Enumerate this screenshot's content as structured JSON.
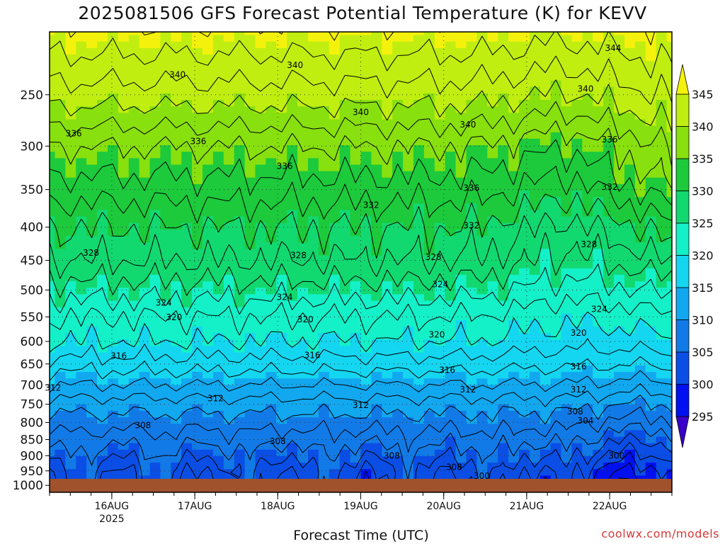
{
  "title": "2025081506 GFS Forecast Potential Temperature (K) for KEVV",
  "xlabel": "Forecast Time (UTC)",
  "credit": "coolwx.com/models",
  "chart_data": {
    "type": "heatmap",
    "title": "2025081506 GFS Forecast Potential Temperature (K) for KEVV",
    "xlabel": "Forecast Time (UTC)",
    "ylabel": "",
    "x_range": [
      "2025-08-15T06:00Z",
      "2025-08-22T18:00Z"
    ],
    "y_axis": {
      "scale": "log-pressure",
      "inverted": true,
      "range": [
        1025,
        200
      ],
      "ticks": [
        250,
        300,
        350,
        400,
        450,
        500,
        550,
        600,
        650,
        700,
        750,
        800,
        850,
        900,
        950,
        1000
      ]
    },
    "x_ticks": [
      {
        "label": "16AUG",
        "sublabel": "2025",
        "time": "2025-08-16T00:00Z"
      },
      {
        "label": "17AUG",
        "sublabel": "",
        "time": "2025-08-17T00:00Z"
      },
      {
        "label": "18AUG",
        "sublabel": "",
        "time": "2025-08-18T00:00Z"
      },
      {
        "label": "19AUG",
        "sublabel": "",
        "time": "2025-08-19T00:00Z"
      },
      {
        "label": "20AUG",
        "sublabel": "",
        "time": "2025-08-20T00:00Z"
      },
      {
        "label": "21AUG",
        "sublabel": "",
        "time": "2025-08-21T00:00Z"
      },
      {
        "label": "22AUG",
        "sublabel": "",
        "time": "2025-08-22T00:00Z"
      }
    ],
    "colorbar": {
      "levels": [
        295,
        300,
        305,
        310,
        315,
        320,
        325,
        330,
        335,
        340,
        345
      ],
      "colors": [
        "#3a00c8",
        "#0010f0",
        "#0a4ee6",
        "#127ae6",
        "#12a8f0",
        "#14d6f0",
        "#14f0c8",
        "#12d870",
        "#1cca3c",
        "#88e00e",
        "#c0ee10",
        "#f4f20c"
      ],
      "extend": "both"
    },
    "profile_pressure": [
      250,
      300,
      350,
      400,
      450,
      500,
      550,
      600,
      650,
      700,
      750,
      800,
      850,
      900,
      950,
      1000
    ],
    "profile_theta_typical": [
      341,
      336,
      333,
      330,
      328,
      325,
      322,
      320,
      317,
      314,
      311,
      309,
      307,
      305,
      303,
      302
    ],
    "contour_interval": 2,
    "contour_labels": [
      {
        "text": "344",
        "time": "2025-08-22T01:00Z",
        "p": 212
      },
      {
        "text": "340",
        "time": "2025-08-16T19:00Z",
        "p": 233
      },
      {
        "text": "340",
        "time": "2025-08-18T05:00Z",
        "p": 225
      },
      {
        "text": "340",
        "time": "2025-08-19T00:00Z",
        "p": 266
      },
      {
        "text": "340",
        "time": "2025-08-20T07:00Z",
        "p": 278
      },
      {
        "text": "340",
        "time": "2025-08-21T17:00Z",
        "p": 245
      },
      {
        "text": "336",
        "time": "2025-08-15T13:00Z",
        "p": 287
      },
      {
        "text": "336",
        "time": "2025-08-17T01:00Z",
        "p": 295
      },
      {
        "text": "336",
        "time": "2025-08-18T02:00Z",
        "p": 322
      },
      {
        "text": "336",
        "time": "2025-08-20T08:00Z",
        "p": 348
      },
      {
        "text": "336",
        "time": "2025-08-22T00:00Z",
        "p": 293
      },
      {
        "text": "332",
        "time": "2025-08-19T03:00Z",
        "p": 370
      },
      {
        "text": "332",
        "time": "2025-08-20T08:00Z",
        "p": 398
      },
      {
        "text": "332",
        "time": "2025-08-22T00:00Z",
        "p": 347
      },
      {
        "text": "328",
        "time": "2025-08-15T18:00Z",
        "p": 438
      },
      {
        "text": "328",
        "time": "2025-08-18T06:00Z",
        "p": 442
      },
      {
        "text": "328",
        "time": "2025-08-19T21:00Z",
        "p": 445
      },
      {
        "text": "328",
        "time": "2025-08-21T18:00Z",
        "p": 425
      },
      {
        "text": "324",
        "time": "2025-08-16T15:00Z",
        "p": 523
      },
      {
        "text": "324",
        "time": "2025-08-18T02:00Z",
        "p": 513
      },
      {
        "text": "324",
        "time": "2025-08-19T23:00Z",
        "p": 490
      },
      {
        "text": "324",
        "time": "2025-08-21T21:00Z",
        "p": 535
      },
      {
        "text": "320",
        "time": "2025-08-16T18:00Z",
        "p": 551
      },
      {
        "text": "320",
        "time": "2025-08-18T08:00Z",
        "p": 555
      },
      {
        "text": "320",
        "time": "2025-08-19T22:00Z",
        "p": 586
      },
      {
        "text": "320",
        "time": "2025-08-21T15:00Z",
        "p": 582
      },
      {
        "text": "316",
        "time": "2025-08-16T02:00Z",
        "p": 632
      },
      {
        "text": "316",
        "time": "2025-08-18T10:00Z",
        "p": 630
      },
      {
        "text": "316",
        "time": "2025-08-20T01:00Z",
        "p": 664
      },
      {
        "text": "316",
        "time": "2025-08-21T15:00Z",
        "p": 656
      },
      {
        "text": "312",
        "time": "2025-08-15T07:00Z",
        "p": 707
      },
      {
        "text": "312",
        "time": "2025-08-17T06:00Z",
        "p": 735
      },
      {
        "text": "312",
        "time": "2025-08-19T00:00Z",
        "p": 752
      },
      {
        "text": "312",
        "time": "2025-08-20T07:00Z",
        "p": 712
      },
      {
        "text": "312",
        "time": "2025-08-21T15:00Z",
        "p": 712
      },
      {
        "text": "308",
        "time": "2025-08-16T09:00Z",
        "p": 808
      },
      {
        "text": "308",
        "time": "2025-08-18T00:00Z",
        "p": 855
      },
      {
        "text": "308",
        "time": "2025-08-19T09:00Z",
        "p": 900
      },
      {
        "text": "308",
        "time": "2025-08-20T03:00Z",
        "p": 938
      },
      {
        "text": "308",
        "time": "2025-08-21T14:00Z",
        "p": 770
      },
      {
        "text": "304",
        "time": "2025-08-20T03:00Z",
        "p": 990
      },
      {
        "text": "304",
        "time": "2025-08-21T17:00Z",
        "p": 795
      },
      {
        "text": "300",
        "time": "2025-08-20T11:00Z",
        "p": 968
      },
      {
        "text": "300",
        "time": "2025-08-22T02:00Z",
        "p": 900
      }
    ]
  }
}
